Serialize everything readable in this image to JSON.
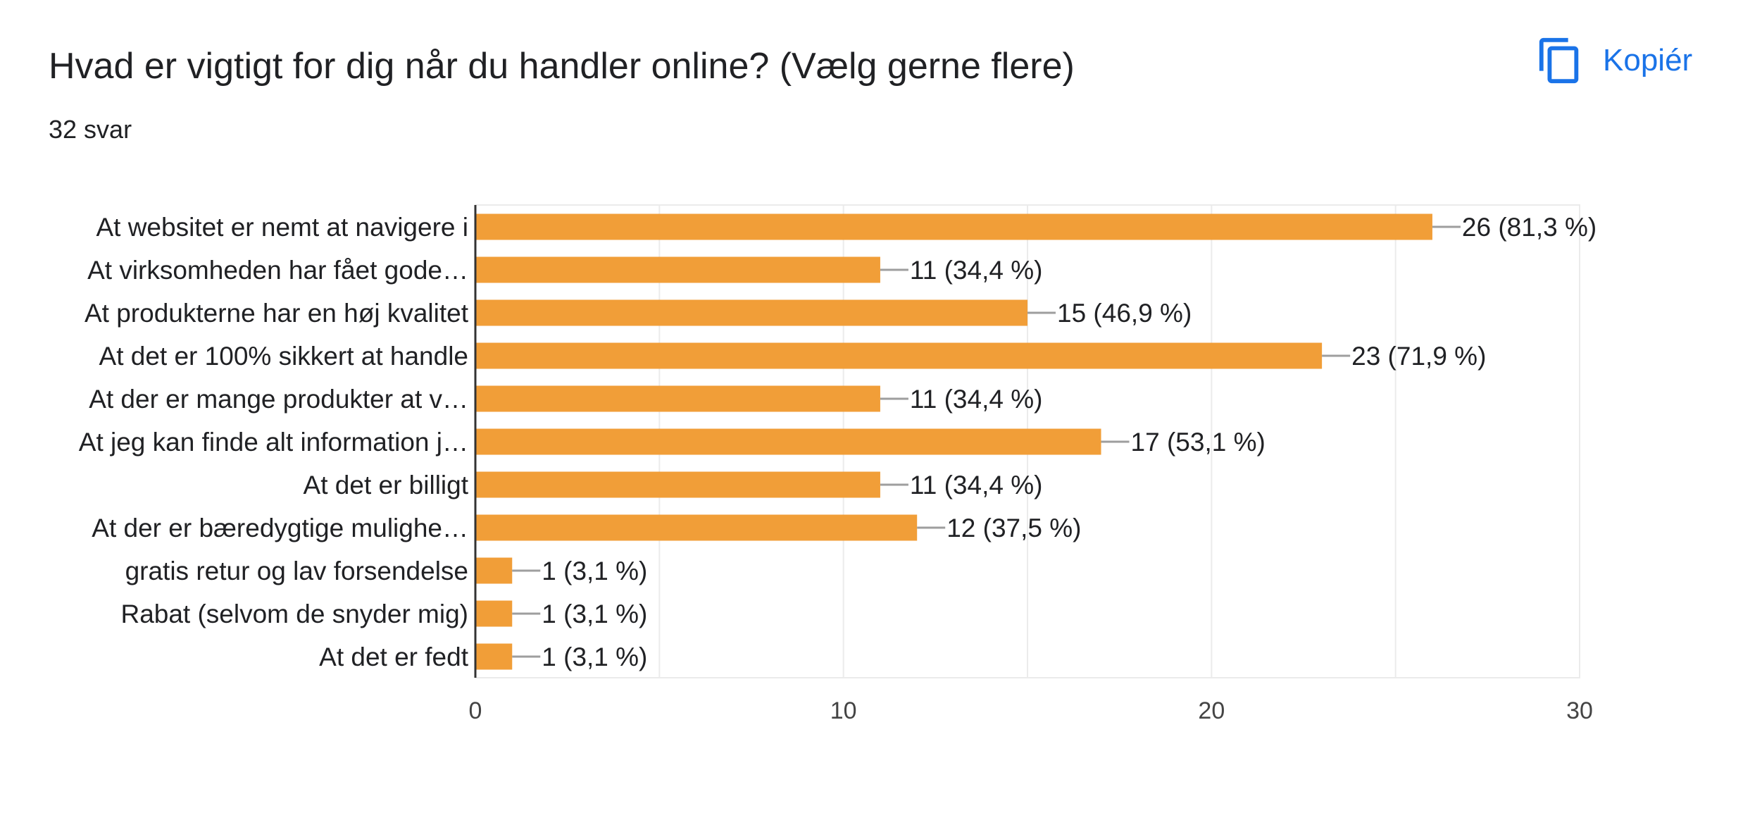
{
  "question": {
    "title": "Hvad er vigtigt for dig når du handler online? (Vælg gerne flere)",
    "response_count": "32 svar"
  },
  "toolbar": {
    "copy_label": "Kopiér",
    "copy_icon": "copy-icon"
  },
  "colors": {
    "bar": "#f19e38",
    "accent": "#1a73e8",
    "grid": "#ebebeb",
    "axis": "#333333",
    "leader": "#9e9e9e"
  },
  "chart_data": {
    "type": "bar",
    "orientation": "horizontal",
    "categories": [
      "At websitet er nemt at navigere i",
      "At virksomheden har fået gode…",
      "At produkterne har en høj kvalitet",
      "At det er 100% sikkert at handle",
      "At der er mange produkter at v…",
      "At jeg kan finde alt information j…",
      "At det er billigt",
      "At der er bæredygtige mulighe…",
      "gratis retur og lav forsendelse",
      "Rabat (selvom de snyder mig)",
      "At det er fedt"
    ],
    "values": [
      26,
      11,
      15,
      23,
      11,
      17,
      11,
      12,
      1,
      1,
      1
    ],
    "value_labels": [
      "26 (81,3 %)",
      "11 (34,4 %)",
      "15 (46,9 %)",
      "23 (71,9 %)",
      "11 (34,4 %)",
      "17 (53,1 %)",
      "11 (34,4 %)",
      "12 (37,5 %)",
      "1 (3,1 %)",
      "1 (3,1 %)",
      "1 (3,1 %)"
    ],
    "xlim": [
      0,
      30
    ],
    "xticks": [
      0,
      10,
      20,
      30
    ],
    "xtick_labels": [
      "0",
      "10",
      "20",
      "30"
    ],
    "grid": true,
    "legend": "none",
    "title": "",
    "xlabel": "",
    "ylabel": ""
  }
}
